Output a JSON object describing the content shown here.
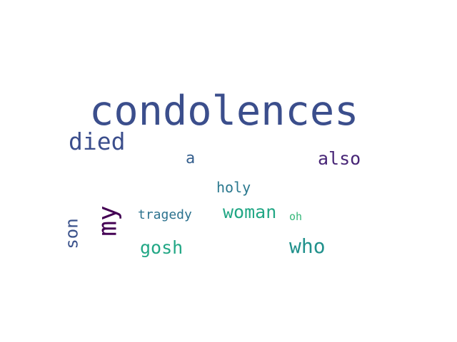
{
  "words": {
    "condolences": {
      "text": "condolences",
      "color": "#3b4e8c"
    },
    "died": {
      "text": "died",
      "color": "#3b4e8c"
    },
    "a": {
      "text": "a",
      "color": "#355f8d"
    },
    "also": {
      "text": "also",
      "color": "#482677"
    },
    "holy": {
      "text": "holy",
      "color": "#2a788e"
    },
    "my": {
      "text": "my",
      "color": "#440154"
    },
    "son": {
      "text": "son",
      "color": "#3b528b"
    },
    "tragedy": {
      "text": "tragedy",
      "color": "#2c728e"
    },
    "woman": {
      "text": "woman",
      "color": "#22a785"
    },
    "oh": {
      "text": "oh",
      "color": "#35b779"
    },
    "gosh": {
      "text": "gosh",
      "color": "#22a785"
    },
    "who": {
      "text": "who",
      "color": "#21918c"
    }
  }
}
